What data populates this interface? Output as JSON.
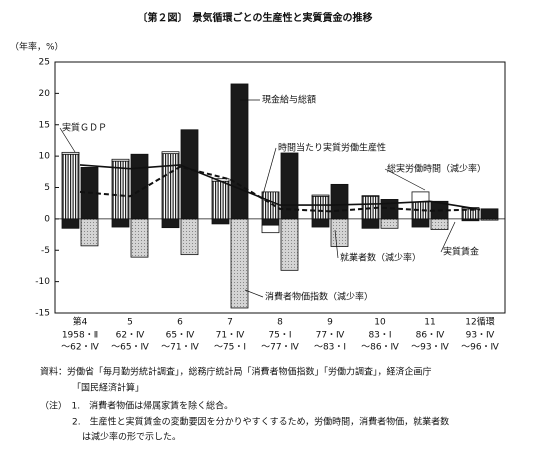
{
  "chart_data": {
    "type": "bar",
    "title": "〔第２図〕　景気循環ごとの生産性と実質賃金の推移",
    "y_label": "（年率，%）",
    "categories": [
      "第4",
      "5",
      "6",
      "7",
      "8",
      "9",
      "10",
      "11",
      "12循環"
    ],
    "periods": [
      [
        "1958・Ⅱ",
        "～62・Ⅳ"
      ],
      [
        "62・Ⅳ",
        "～65・Ⅳ"
      ],
      [
        "65・Ⅳ",
        "～71・Ⅳ"
      ],
      [
        "71・Ⅳ",
        "～75・Ⅰ"
      ],
      [
        "75・Ⅰ",
        "～77・Ⅳ"
      ],
      [
        "77・Ⅳ",
        "～83・Ⅰ"
      ],
      [
        "83・Ⅰ",
        "～86・Ⅳ"
      ],
      [
        "86・Ⅳ",
        "～93・Ⅳ"
      ],
      [
        "93・Ⅳ",
        "～96・Ⅳ"
      ]
    ],
    "ylim": [
      -15,
      25
    ],
    "yticks": [
      -15,
      -10,
      -5,
      0,
      5,
      10,
      15,
      20,
      25
    ],
    "series": [
      {
        "name": "実質ＧＤＰ",
        "kind": "bar",
        "stack": "left",
        "color": "stripes",
        "values": [
          10.3,
          9.2,
          10.4,
          6.0,
          4.3,
          3.6,
          3.6,
          2.7,
          1.6
        ]
      },
      {
        "name": "就業者数（減少率）",
        "kind": "bar",
        "stack": "left",
        "color": "#1a1a1a",
        "values": [
          -1.5,
          -1.3,
          -1.4,
          -0.8,
          -1.0,
          -1.3,
          -1.5,
          -1.3,
          -0.3
        ]
      },
      {
        "name": "総実労働時間（減少率）",
        "kind": "bar",
        "stack": "left",
        "color": "#ffffff",
        "values": [
          0.3,
          0.3,
          0.3,
          0.4,
          -1.2,
          0.2,
          0.1,
          1.6,
          0.2
        ]
      },
      {
        "name": "現金給与総額",
        "kind": "bar",
        "stack": "right",
        "color": "#1a1a1a",
        "values": [
          8.2,
          10.3,
          14.2,
          21.5,
          10.5,
          5.5,
          3.1,
          2.8,
          1.6
        ]
      },
      {
        "name": "消費者物価指数（減少率）",
        "kind": "bar",
        "stack": "right",
        "color": "#c8c8c8",
        "values": [
          -4.3,
          -6.1,
          -5.7,
          -14.2,
          -8.2,
          -4.4,
          -1.5,
          -1.7,
          -0.2
        ]
      },
      {
        "name": "時間当たり実質労働生産性",
        "kind": "line",
        "dash": false,
        "color": "#111111",
        "values": [
          8.6,
          8.0,
          8.6,
          5.4,
          2.2,
          2.2,
          2.4,
          2.8,
          1.5
        ]
      },
      {
        "name": "実質賃金",
        "kind": "line",
        "dash": true,
        "color": "#111111",
        "values": [
          4.3,
          3.6,
          8.3,
          6.3,
          1.6,
          1.2,
          1.8,
          1.3,
          1.5
        ]
      }
    ],
    "notes": [
      "資料：労働省「毎月勤労統計調査」，総務庁統計局「消費者物価指数」「労働力調査」，経済企画庁",
      "「国民経済計算」",
      "（注）　1.　消費者物価は帰属家賃を除く総合。",
      "2.　生産性と実質賃金の変動要因を分かりやすくするため，労働時間，消費者物価，就業者数",
      "は減少率の形で示した。"
    ]
  }
}
